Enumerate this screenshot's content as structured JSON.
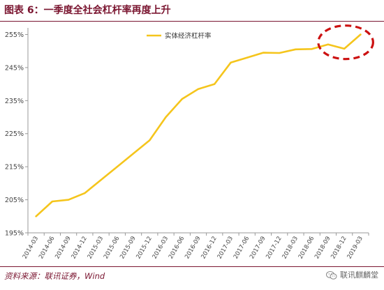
{
  "header": {
    "title": "图表 6：一季度全社会杠杆率再度上升"
  },
  "chart_data": {
    "type": "line",
    "x": [
      "2014-03",
      "2014-06",
      "2014-09",
      "2014-12",
      "2015-03",
      "2015-06",
      "2015-09",
      "2015-12",
      "2016-03",
      "2016-06",
      "2016-09",
      "2016-12",
      "2017-03",
      "2017-06",
      "2017-09",
      "2017-12",
      "2018-03",
      "2018-06",
      "2018-09",
      "2018-12",
      "2019-03"
    ],
    "series": [
      {
        "name": "实体经济杠杆率",
        "color": "#f5c51c",
        "values": [
          200.0,
          204.5,
          205.0,
          207.0,
          211.0,
          215.0,
          219.0,
          223.0,
          230.0,
          235.5,
          238.5,
          240.0,
          246.5,
          248.0,
          249.5,
          249.4,
          250.5,
          250.6,
          252.0,
          250.7,
          255.0
        ]
      }
    ],
    "yticks": [
      195,
      205,
      215,
      225,
      235,
      245,
      255
    ],
    "ytick_labels": [
      "195%",
      "205%",
      "215%",
      "225%",
      "235%",
      "245%",
      "255%"
    ],
    "ylim": [
      195,
      257
    ],
    "legend_position": "top-center",
    "grid": false,
    "annotation": {
      "type": "dashed-ellipse",
      "color": "#cc1111",
      "x_from": "2018-09",
      "x_to": "2019-03"
    }
  },
  "footer": {
    "source": "资料来源：联讯证券，Wind",
    "watermark": "联讯麒麟堂"
  }
}
